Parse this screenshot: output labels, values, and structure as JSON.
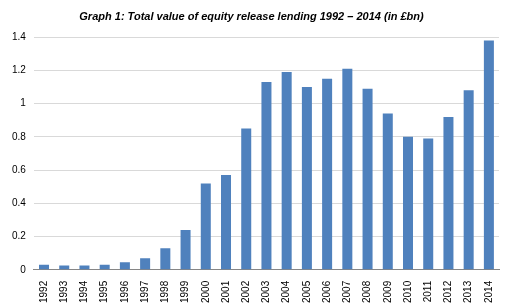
{
  "chart_data": {
    "type": "bar",
    "title": "Graph 1: Total value of equity release lending 1992 – 2014 (in £bn)",
    "categories": [
      "1992",
      "1993",
      "1994",
      "1995",
      "1996",
      "1997",
      "1998",
      "1999",
      "2000",
      "2001",
      "2002",
      "2003",
      "2004",
      "2005",
      "2006",
      "2007",
      "2008",
      "2009",
      "2010",
      "2011",
      "2012",
      "2013",
      "2014"
    ],
    "values": [
      0.03,
      0.025,
      0.025,
      0.03,
      0.045,
      0.07,
      0.13,
      0.24,
      0.52,
      0.57,
      0.85,
      1.13,
      1.19,
      1.1,
      1.15,
      1.21,
      1.09,
      0.94,
      0.8,
      0.79,
      0.92,
      1.08,
      1.38
    ],
    "color": "#4f81bd",
    "ylim": [
      0,
      1.4
    ],
    "yticks": [
      0,
      0.2,
      0.4,
      0.6,
      0.8,
      1,
      1.2,
      1.4
    ],
    "grid": true
  }
}
